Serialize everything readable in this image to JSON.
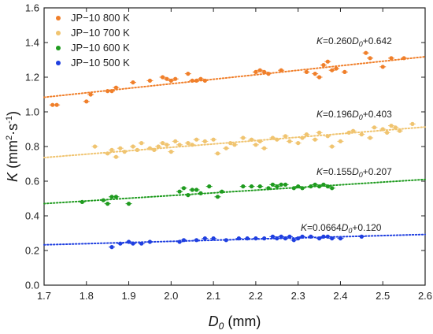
{
  "chart_data": {
    "type": "scatter",
    "xlabel_main": "D",
    "xlabel_sub": "0",
    "xlabel_unit": " (mm)",
    "ylabel_main": "K",
    "ylabel_unit_a": " (mm",
    "ylabel_sup1": "2",
    "ylabel_mid": "·s",
    "ylabel_sup2": "-1",
    "ylabel_close": ")",
    "xlim": [
      1.7,
      2.6
    ],
    "ylim": [
      0.0,
      1.6
    ],
    "xticks": [
      "1.7",
      "1.8",
      "1.9",
      "2.0",
      "2.1",
      "2.2",
      "2.3",
      "2.4",
      "2.5",
      "2.6"
    ],
    "yticks": [
      "0.0",
      "0.2",
      "0.4",
      "0.6",
      "0.8",
      "1.0",
      "1.2",
      "1.4",
      "1.6"
    ],
    "legend_position": "top-left",
    "series": [
      {
        "name": "JP−10 800 K",
        "color": "#f07f2a",
        "fit": {
          "slope": 0.26,
          "intercept": 0.642,
          "eq_k": "K",
          "eq_a": "=0.260",
          "eq_d": "D",
          "eq_sub": "0",
          "eq_b": "+0.642"
        },
        "points": [
          [
            1.72,
            1.04
          ],
          [
            1.73,
            1.04
          ],
          [
            1.8,
            1.06
          ],
          [
            1.81,
            1.1
          ],
          [
            1.85,
            1.12
          ],
          [
            1.86,
            1.12
          ],
          [
            1.87,
            1.14
          ],
          [
            1.91,
            1.17
          ],
          [
            1.95,
            1.18
          ],
          [
            1.98,
            1.2
          ],
          [
            1.99,
            1.19
          ],
          [
            2.0,
            1.18
          ],
          [
            2.01,
            1.19
          ],
          [
            2.04,
            1.22
          ],
          [
            2.05,
            1.18
          ],
          [
            2.06,
            1.18
          ],
          [
            2.07,
            1.19
          ],
          [
            2.08,
            1.18
          ],
          [
            2.2,
            1.23
          ],
          [
            2.21,
            1.24
          ],
          [
            2.22,
            1.23
          ],
          [
            2.23,
            1.22
          ],
          [
            2.26,
            1.24
          ],
          [
            2.32,
            1.23
          ],
          [
            2.34,
            1.22
          ],
          [
            2.35,
            1.2
          ],
          [
            2.36,
            1.27
          ],
          [
            2.37,
            1.29
          ],
          [
            2.38,
            1.24
          ],
          [
            2.39,
            1.25
          ],
          [
            2.41,
            1.23
          ],
          [
            2.46,
            1.34
          ],
          [
            2.47,
            1.31
          ],
          [
            2.5,
            1.26
          ],
          [
            2.52,
            1.31
          ],
          [
            2.55,
            1.31
          ]
        ]
      },
      {
        "name": "JP−10 700 K",
        "color": "#f0c470",
        "fit": {
          "slope": 0.196,
          "intercept": 0.403,
          "eq_k": "K",
          "eq_a": "=0.196",
          "eq_d": "D",
          "eq_sub": "0",
          "eq_b": "+0.403"
        },
        "points": [
          [
            1.82,
            0.8
          ],
          [
            1.85,
            0.76
          ],
          [
            1.86,
            0.78
          ],
          [
            1.87,
            0.74
          ],
          [
            1.88,
            0.79
          ],
          [
            1.89,
            0.77
          ],
          [
            1.91,
            0.8
          ],
          [
            1.92,
            0.78
          ],
          [
            1.93,
            0.82
          ],
          [
            1.95,
            0.79
          ],
          [
            1.96,
            0.78
          ],
          [
            1.97,
            0.8
          ],
          [
            1.98,
            0.82
          ],
          [
            1.99,
            0.81
          ],
          [
            2.0,
            0.77
          ],
          [
            2.01,
            0.83
          ],
          [
            2.02,
            0.81
          ],
          [
            2.04,
            0.82
          ],
          [
            2.05,
            0.81
          ],
          [
            2.06,
            0.84
          ],
          [
            2.08,
            0.83
          ],
          [
            2.1,
            0.84
          ],
          [
            2.11,
            0.76
          ],
          [
            2.13,
            0.79
          ],
          [
            2.14,
            0.82
          ],
          [
            2.15,
            0.81
          ],
          [
            2.17,
            0.85
          ],
          [
            2.19,
            0.84
          ],
          [
            2.2,
            0.81
          ],
          [
            2.21,
            0.83
          ],
          [
            2.22,
            0.79
          ],
          [
            2.24,
            0.85
          ],
          [
            2.25,
            0.84
          ],
          [
            2.27,
            0.86
          ],
          [
            2.28,
            0.83
          ],
          [
            2.3,
            0.82
          ],
          [
            2.31,
            0.85
          ],
          [
            2.32,
            0.87
          ],
          [
            2.34,
            0.84
          ],
          [
            2.35,
            0.88
          ],
          [
            2.37,
            0.86
          ],
          [
            2.38,
            0.8
          ],
          [
            2.4,
            0.83
          ],
          [
            2.42,
            0.88
          ],
          [
            2.43,
            0.89
          ],
          [
            2.45,
            0.87
          ],
          [
            2.47,
            0.85
          ],
          [
            2.48,
            0.91
          ],
          [
            2.5,
            0.9
          ],
          [
            2.51,
            0.88
          ],
          [
            2.52,
            0.92
          ],
          [
            2.53,
            0.91
          ],
          [
            2.54,
            0.89
          ],
          [
            2.57,
            0.93
          ]
        ]
      },
      {
        "name": "JP−10 600 K",
        "color": "#1f9b1f",
        "fit": {
          "slope": 0.155,
          "intercept": 0.207,
          "eq_k": "K",
          "eq_a": "=0.155",
          "eq_d": "D",
          "eq_sub": "0",
          "eq_b": "+0.207"
        },
        "points": [
          [
            1.79,
            0.48
          ],
          [
            1.84,
            0.49
          ],
          [
            1.85,
            0.47
          ],
          [
            1.86,
            0.51
          ],
          [
            1.87,
            0.51
          ],
          [
            1.9,
            0.47
          ],
          [
            2.02,
            0.54
          ],
          [
            2.03,
            0.56
          ],
          [
            2.04,
            0.52
          ],
          [
            2.05,
            0.55
          ],
          [
            2.06,
            0.55
          ],
          [
            2.07,
            0.53
          ],
          [
            2.09,
            0.57
          ],
          [
            2.11,
            0.51
          ],
          [
            2.12,
            0.54
          ],
          [
            2.17,
            0.57
          ],
          [
            2.19,
            0.57
          ],
          [
            2.21,
            0.57
          ],
          [
            2.23,
            0.56
          ],
          [
            2.24,
            0.58
          ],
          [
            2.25,
            0.57
          ],
          [
            2.26,
            0.58
          ],
          [
            2.27,
            0.58
          ],
          [
            2.29,
            0.56
          ],
          [
            2.3,
            0.57
          ],
          [
            2.31,
            0.56
          ],
          [
            2.33,
            0.57
          ],
          [
            2.34,
            0.58
          ],
          [
            2.35,
            0.57
          ],
          [
            2.36,
            0.58
          ],
          [
            2.37,
            0.57
          ],
          [
            2.38,
            0.56
          ]
        ]
      },
      {
        "name": "JP−10 500 K",
        "color": "#1f3fe0",
        "fit": {
          "slope": 0.0664,
          "intercept": 0.12,
          "eq_k": "K",
          "eq_a": "=0.0664",
          "eq_d": "D",
          "eq_sub": "0",
          "eq_b": "+0.120"
        },
        "points": [
          [
            1.86,
            0.22
          ],
          [
            1.88,
            0.24
          ],
          [
            1.9,
            0.25
          ],
          [
            1.91,
            0.24
          ],
          [
            1.93,
            0.24
          ],
          [
            1.95,
            0.25
          ],
          [
            2.02,
            0.25
          ],
          [
            2.03,
            0.26
          ],
          [
            2.06,
            0.26
          ],
          [
            2.08,
            0.27
          ],
          [
            2.1,
            0.27
          ],
          [
            2.13,
            0.26
          ],
          [
            2.16,
            0.27
          ],
          [
            2.18,
            0.27
          ],
          [
            2.2,
            0.27
          ],
          [
            2.22,
            0.27
          ],
          [
            2.24,
            0.28
          ],
          [
            2.25,
            0.27
          ],
          [
            2.26,
            0.28
          ],
          [
            2.27,
            0.27
          ],
          [
            2.28,
            0.28
          ],
          [
            2.29,
            0.26
          ],
          [
            2.3,
            0.27
          ],
          [
            2.31,
            0.28
          ],
          [
            2.33,
            0.28
          ],
          [
            2.35,
            0.27
          ],
          [
            2.36,
            0.28
          ],
          [
            2.37,
            0.28
          ],
          [
            2.38,
            0.27
          ],
          [
            2.4,
            0.27
          ],
          [
            2.45,
            0.28
          ]
        ]
      }
    ]
  }
}
